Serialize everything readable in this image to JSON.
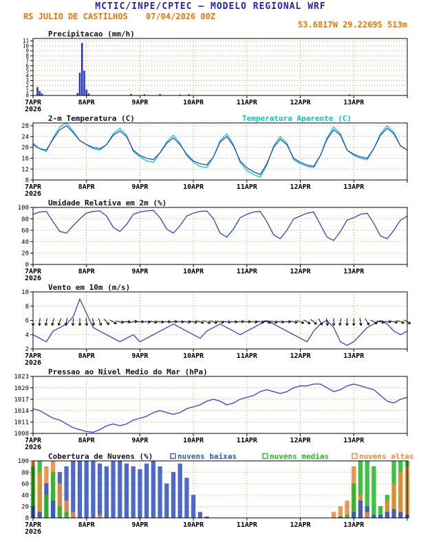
{
  "header": {
    "line1": "MCTIC/INPE/CPTEC — MODELO REGIONAL WRF",
    "station": "RS JULIO DE CASTILHOS",
    "run": "07/04/2026 00Z",
    "coords": "53.6817W 29.2269S 513m"
  },
  "colors": {
    "header_blue": "#2222cc",
    "header_orange": "#ee7700",
    "grid": "#cfa14f",
    "frame": "#000000",
    "series_blue": "#2244dd",
    "series_cyan": "#00c8c8",
    "precip_blue": "#2233cc",
    "cloud_low_blue": "#3355cc",
    "cloud_mid_green": "#22bb22",
    "cloud_high_orange": "#ee8833",
    "wind_arrow_black": "#000000"
  },
  "x_axis": {
    "hours": 168,
    "day_labels": [
      "7APR",
      "8APR",
      "9APR",
      "10APR",
      "11APR",
      "12APR",
      "13APR"
    ],
    "year": "2026"
  },
  "chart_data": [
    {
      "id": "precipitation",
      "type": "bar",
      "title": "Precipitacao (mm/h)",
      "ylim": [
        0,
        11.5
      ],
      "yticks": [
        0,
        1,
        2,
        3,
        4,
        5,
        6,
        7,
        8,
        9,
        10,
        11
      ],
      "series": [
        {
          "name": "precipitacao",
          "color": "#2233cc",
          "points": [
            {
              "h": 2,
              "v": 1.7
            },
            {
              "h": 3,
              "v": 0.9
            },
            {
              "h": 4,
              "v": 0.4
            },
            {
              "h": 20,
              "v": 0.5
            },
            {
              "h": 21,
              "v": 4.6
            },
            {
              "h": 22,
              "v": 10.6
            },
            {
              "h": 23,
              "v": 5.0
            },
            {
              "h": 24,
              "v": 1.2
            },
            {
              "h": 25,
              "v": 0.4
            },
            {
              "h": 44,
              "v": 0.3
            },
            {
              "h": 50,
              "v": 0.25
            },
            {
              "h": 57,
              "v": 0.3
            },
            {
              "h": 66,
              "v": 0.2
            },
            {
              "h": 70,
              "v": 0.25
            },
            {
              "h": 142,
              "v": 0.2
            }
          ]
        }
      ]
    },
    {
      "id": "temperature",
      "type": "line",
      "title": "2-m Temperatura (C)",
      "title2": {
        "text": "Temperatura Aparente (C)",
        "color": "#00c8c8"
      },
      "ylim": [
        8,
        29
      ],
      "yticks": [
        8,
        12,
        16,
        20,
        24,
        28
      ],
      "series": [
        {
          "name": "temperatura-aparente",
          "color": "#00c8c8",
          "values": [
            21.5,
            19.5,
            18.5,
            23.5,
            27.5,
            29,
            26,
            22.5,
            21,
            19.5,
            19,
            21,
            25,
            27,
            24.5,
            18.5,
            16.5,
            15,
            14.5,
            18,
            22,
            24.5,
            21.5,
            17,
            14.5,
            13,
            12.5,
            16.5,
            22.5,
            25,
            21,
            14.5,
            11.5,
            10,
            9,
            13.5,
            20.5,
            24,
            21.5,
            15.5,
            14,
            13,
            12.5,
            17,
            23.5,
            27.5,
            25,
            19,
            17,
            16,
            15.5,
            19.5,
            25,
            28,
            25.5,
            20.5,
            19
          ]
        },
        {
          "name": "temperatura-2m",
          "color": "#2244dd",
          "values": [
            21,
            19.5,
            19,
            23,
            26.5,
            28,
            25.5,
            22.5,
            21,
            20,
            19.5,
            21,
            24.5,
            26,
            24,
            19,
            17,
            16,
            15.5,
            18,
            21.5,
            23.5,
            21,
            17.5,
            15,
            14,
            13.5,
            16.5,
            22,
            24,
            20.5,
            15,
            12.5,
            11,
            10,
            14,
            20,
            23,
            21,
            16,
            14.5,
            13.5,
            13,
            17,
            23,
            26.5,
            24.5,
            19,
            17.5,
            16.5,
            16,
            19.5,
            24.5,
            27,
            25,
            20.5,
            19
          ]
        }
      ]
    },
    {
      "id": "humidity",
      "type": "line",
      "title": "Umidade Relativa em 2m (%)",
      "ylim": [
        0,
        100
      ],
      "yticks": [
        0,
        20,
        40,
        60,
        80,
        100
      ],
      "series": [
        {
          "name": "umidade-relativa",
          "color": "#2244dd",
          "values": [
            88,
            92,
            93,
            75,
            58,
            55,
            68,
            80,
            90,
            93,
            94,
            85,
            65,
            58,
            70,
            88,
            92,
            94,
            95,
            82,
            62,
            55,
            68,
            85,
            90,
            93,
            94,
            80,
            55,
            48,
            62,
            82,
            88,
            92,
            93,
            75,
            52,
            45,
            60,
            80,
            85,
            90,
            92,
            70,
            48,
            42,
            58,
            78,
            82,
            88,
            90,
            72,
            50,
            45,
            60,
            78,
            85
          ]
        }
      ]
    },
    {
      "id": "wind",
      "type": "line",
      "title": "Vento em 10m (m/s)",
      "ylim": [
        2,
        10
      ],
      "yticks": [
        2,
        4,
        6,
        8,
        10
      ],
      "arrow_y": 5.8,
      "series": [
        {
          "name": "velocidade-vento",
          "color": "#2244dd",
          "values": [
            4,
            3.5,
            3,
            4.5,
            5,
            5.5,
            6.5,
            9,
            7,
            5,
            4.5,
            4,
            3.5,
            3,
            3.5,
            4,
            3,
            3.5,
            4,
            4.5,
            5,
            5.5,
            5,
            4.5,
            4,
            3.5,
            4.5,
            5,
            5.5,
            5,
            4.5,
            4,
            4.5,
            5,
            5.5,
            6,
            5.5,
            5,
            4.5,
            4,
            3.5,
            3,
            4.5,
            5.5,
            6,
            5,
            3,
            2.5,
            3,
            4,
            5,
            5.5,
            6,
            5.5,
            4.5,
            4,
            4.5
          ]
        }
      ],
      "arrows": {
        "name": "direcao-vento",
        "color": "#000000",
        "dirs": [
          90,
          95,
          100,
          105,
          110,
          100,
          95,
          90,
          85,
          80,
          70,
          50,
          30,
          10,
          0,
          350,
          0,
          5,
          10,
          5,
          0,
          355,
          0,
          5,
          10,
          15,
          20,
          15,
          10,
          5,
          0,
          355,
          0,
          5,
          10,
          15,
          10,
          5,
          0,
          10,
          20,
          30,
          40,
          60,
          80,
          90,
          100,
          90,
          90,
          80,
          60,
          30,
          10,
          0,
          10,
          20,
          30
        ]
      }
    },
    {
      "id": "pressure",
      "type": "line",
      "title": "Pressao ao Nivel Medio do Mar (hPa)",
      "ylim": [
        1008,
        1023
      ],
      "yticks": [
        1008,
        1011,
        1014,
        1017,
        1020,
        1023
      ],
      "series": [
        {
          "name": "pressao-nivel-mar",
          "color": "#2244dd",
          "values": [
            1014.5,
            1014,
            1013,
            1012,
            1011.5,
            1010.5,
            1009.5,
            1009,
            1008.5,
            1008.3,
            1009,
            1010,
            1010.5,
            1010,
            1010.5,
            1011.5,
            1012,
            1012.5,
            1013.5,
            1014,
            1013.5,
            1013,
            1013.5,
            1014.5,
            1015,
            1015.5,
            1016.5,
            1017,
            1016.5,
            1015.5,
            1016,
            1017,
            1017.5,
            1018,
            1019,
            1019.5,
            1019,
            1018.5,
            1019,
            1020,
            1020.5,
            1020.5,
            1021,
            1021,
            1020,
            1019,
            1019.5,
            1020.5,
            1021,
            1020.5,
            1020,
            1019.5,
            1018,
            1016.5,
            1016,
            1017,
            1017.5
          ]
        }
      ]
    },
    {
      "id": "clouds",
      "type": "bar",
      "title": "Cobertura de Nuvens (%)",
      "ylim": [
        0,
        100
      ],
      "yticks": [
        0,
        20,
        40,
        60,
        80,
        100
      ],
      "legend": [
        {
          "label": "nuvens baixas",
          "color": "#3355cc"
        },
        {
          "label": "nuvens medias",
          "color": "#22bb22"
        },
        {
          "label": "nuvens altas",
          "color": "#ee8833"
        }
      ],
      "series": [
        {
          "name": "nuvens-altas",
          "color": "#ee8833",
          "values": [
            100,
            80,
            90,
            100,
            60,
            30,
            10,
            0,
            0,
            0,
            5,
            0,
            0,
            0,
            0,
            0,
            0,
            0,
            0,
            0,
            0,
            0,
            0,
            0,
            0,
            0,
            0,
            0,
            0,
            0,
            0,
            0,
            0,
            0,
            0,
            0,
            0,
            0,
            0,
            0,
            0,
            0,
            0,
            0,
            0,
            10,
            20,
            30,
            90,
            40,
            10,
            0,
            0,
            30,
            60,
            80,
            90
          ]
        },
        {
          "name": "nuvens-medias",
          "color": "#22bb22",
          "values": [
            90,
            100,
            40,
            80,
            20,
            10,
            0,
            0,
            0,
            0,
            0,
            0,
            0,
            0,
            0,
            0,
            0,
            0,
            0,
            0,
            0,
            0,
            0,
            0,
            0,
            0,
            0,
            0,
            0,
            0,
            0,
            0,
            0,
            0,
            0,
            0,
            0,
            0,
            0,
            0,
            0,
            0,
            0,
            0,
            0,
            0,
            0,
            5,
            60,
            100,
            100,
            90,
            20,
            40,
            100,
            100,
            100
          ]
        },
        {
          "name": "nuvens-baixas",
          "color": "#3355cc",
          "values": [
            20,
            10,
            60,
            30,
            80,
            90,
            100,
            100,
            100,
            100,
            95,
            90,
            100,
            100,
            95,
            90,
            85,
            95,
            100,
            90,
            60,
            80,
            95,
            70,
            40,
            10,
            2,
            0,
            0,
            0,
            0,
            0,
            0,
            0,
            0,
            0,
            0,
            0,
            0,
            0,
            0,
            0,
            0,
            0,
            0,
            0,
            2,
            0,
            10,
            30,
            20,
            5,
            5,
            10,
            15,
            10,
            5
          ]
        }
      ]
    }
  ]
}
